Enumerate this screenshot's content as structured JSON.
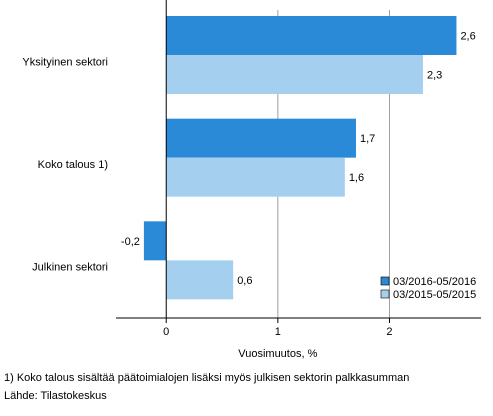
{
  "chart_data": {
    "type": "bar",
    "orientation": "horizontal",
    "categories": [
      "Yksityinen sektori",
      "Koko talous 1)",
      "Julkinen sektori"
    ],
    "series": [
      {
        "name": "03/2016-05/2016",
        "values": [
          2.6,
          1.7,
          -0.2
        ],
        "labels": [
          "2,6",
          "1,7",
          "-0,2"
        ],
        "color": "#2a8ad8"
      },
      {
        "name": "03/2015-05/2015",
        "values": [
          2.3,
          1.6,
          0.6
        ],
        "labels": [
          "2,3",
          "1,6",
          "0,6"
        ],
        "color": "#a5cfee"
      }
    ],
    "xlabel": "Vuosimuutos, %",
    "xlim": [
      -0.45,
      2.82
    ],
    "xticks": [
      0,
      1,
      2
    ],
    "xtick_labels": [
      "0",
      "1",
      "2"
    ],
    "grid": "vertical",
    "legend_position": "bottom-right"
  },
  "footnote": "1) Koko talous sisältää päätoimialojen lisäksi myös julkisen sektorin palkkasumman",
  "source": "Lähde: Tilastokeskus"
}
